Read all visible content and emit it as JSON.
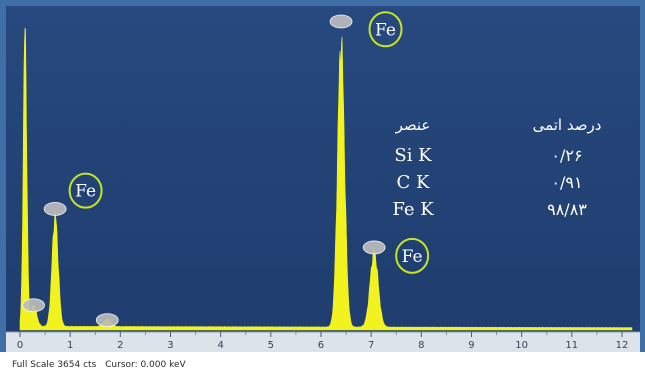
{
  "chart_data": {
    "type": "line",
    "title": "",
    "xlabel": "",
    "ylabel": "",
    "xlim": [
      0,
      12.2
    ],
    "ylim": [
      0,
      3654
    ],
    "x_ticks": [
      "0",
      "1",
      "2",
      "3",
      "4",
      "5",
      "6",
      "7",
      "8",
      "9",
      "10",
      "11",
      "12"
    ],
    "grid": false,
    "colors": {
      "background": "#1f3d6e",
      "frame": "#3f6fa6",
      "spectrum_fill": "#f2f21e",
      "peak_circle": "#c8e620",
      "label_text": "#ffffff",
      "axis_panel": "#dde3ea",
      "peak_marker": "#bcbcbc"
    },
    "peaks": [
      {
        "x": 0.1,
        "y": 3654,
        "sigma": 0.035,
        "marker": false
      },
      {
        "x": 0.27,
        "y": 260,
        "sigma": 0.06,
        "marker": true
      },
      {
        "x": 0.7,
        "y": 1360,
        "sigma": 0.06,
        "marker": true
      },
      {
        "x": 1.74,
        "y": 90,
        "sigma": 0.07,
        "marker": true
      },
      {
        "x": 6.4,
        "y": 3500,
        "sigma": 0.07,
        "marker": true
      },
      {
        "x": 7.06,
        "y": 920,
        "sigma": 0.08,
        "marker": true
      }
    ],
    "background_counts": 45,
    "element_labels": [
      {
        "text": "Fe",
        "x": 0.75,
        "y": 1500
      },
      {
        "text": "Fe",
        "x": 6.25,
        "y": 3320
      },
      {
        "text": "Fe",
        "x": 7.0,
        "y": 790
      },
      {
        "text": "Fe",
        "x": 7.0,
        "y": 790
      }
    ]
  },
  "composition_table": {
    "header_element": "عنصر",
    "header_percent": "درصد اتمی",
    "rows": [
      {
        "element": "Si K",
        "percent": "۰/۲۶"
      },
      {
        "element": "C K",
        "percent": "۰/۹۱"
      },
      {
        "element": "Fe K",
        "percent": "۹۸/۸۳"
      }
    ]
  },
  "footer": {
    "full_scale": "Full Scale 3654 cts",
    "cursor": "Cursor: 0.000 keV"
  }
}
